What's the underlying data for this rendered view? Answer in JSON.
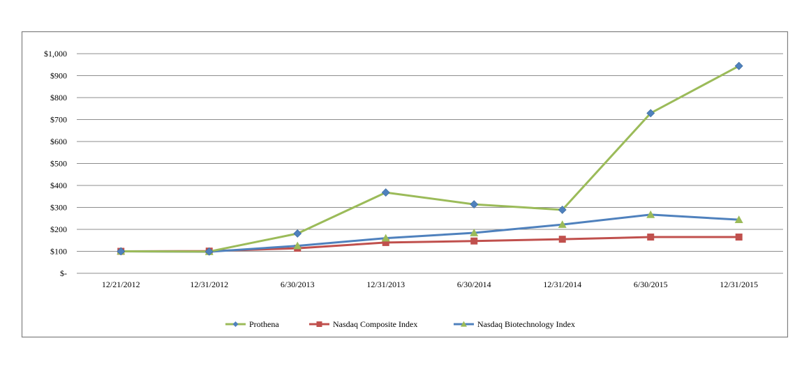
{
  "chart_data": {
    "type": "line",
    "title": "",
    "xlabel": "",
    "ylabel": "",
    "categories": [
      "12/21/2012",
      "12/31/2012",
      "6/30/2013",
      "12/31/2013",
      "6/30/2014",
      "12/31/2014",
      "6/30/2015",
      "12/31/2015"
    ],
    "ylim": [
      0,
      1000
    ],
    "yticks": [
      0,
      100,
      200,
      300,
      400,
      500,
      600,
      700,
      800,
      900,
      1000
    ],
    "ytick_labels": [
      "$-",
      "$100",
      "$200",
      "$300",
      "$400",
      "$500",
      "$600",
      "$700",
      "$800",
      "$900",
      "$1,000"
    ],
    "grid": true,
    "legend_position": "bottom",
    "series": [
      {
        "name": "Prothena",
        "line_color": "#9BBB59",
        "marker_color": "#4F81BD",
        "marker": "diamond",
        "values": [
          100,
          99,
          181,
          368,
          314,
          289,
          729,
          944
        ]
      },
      {
        "name": "Nasdaq Composite Index",
        "line_color": "#C0504D",
        "marker_color": "#C0504D",
        "marker": "square",
        "values": [
          100,
          101,
          114,
          140,
          147,
          155,
          165,
          165
        ]
      },
      {
        "name": "Nasdaq Biotechnology Index",
        "line_color": "#4F81BD",
        "marker_color": "#9BBB59",
        "marker": "triangle",
        "values": [
          100,
          98,
          125,
          160,
          184,
          222,
          267,
          244
        ]
      }
    ]
  }
}
